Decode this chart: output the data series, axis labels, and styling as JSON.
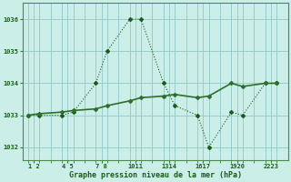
{
  "title": "Graphe pression niveau de la mer (hPa)",
  "background_color": "#cceee8",
  "grid_color": "#99cccc",
  "line_color_1": "#1a5c1a",
  "line_color_2": "#2d6e2d",
  "ylabel_ticks": [
    1032,
    1033,
    1034,
    1035,
    1036
  ],
  "xtick_labels": [
    "1 2",
    "4 5",
    "7 8",
    "1011",
    "1314",
    "1617",
    "1920",
    "2223"
  ],
  "xtick_positions": [
    1.5,
    4.5,
    7.5,
    10.5,
    13.5,
    16.5,
    19.5,
    22.5
  ],
  "series1_x": [
    1,
    2,
    4,
    5,
    7,
    8,
    10,
    11,
    13,
    14,
    16,
    17,
    19,
    20,
    22,
    23
  ],
  "series1_y": [
    1033.0,
    1033.0,
    1033.0,
    1033.1,
    1034.0,
    1035.0,
    1036.0,
    1036.0,
    1034.0,
    1033.3,
    1033.0,
    1032.0,
    1033.1,
    1033.0,
    1034.0,
    1034.0
  ],
  "series2_x": [
    1,
    2,
    4,
    5,
    7,
    8,
    10,
    11,
    13,
    14,
    16,
    17,
    19,
    20,
    22,
    23
  ],
  "series2_y": [
    1033.0,
    1033.05,
    1033.1,
    1033.15,
    1033.2,
    1033.3,
    1033.45,
    1033.55,
    1033.6,
    1033.65,
    1033.55,
    1033.6,
    1034.0,
    1033.9,
    1034.0,
    1034.0
  ],
  "ylim": [
    1031.6,
    1036.5
  ],
  "xlim": [
    0.5,
    24.0
  ]
}
